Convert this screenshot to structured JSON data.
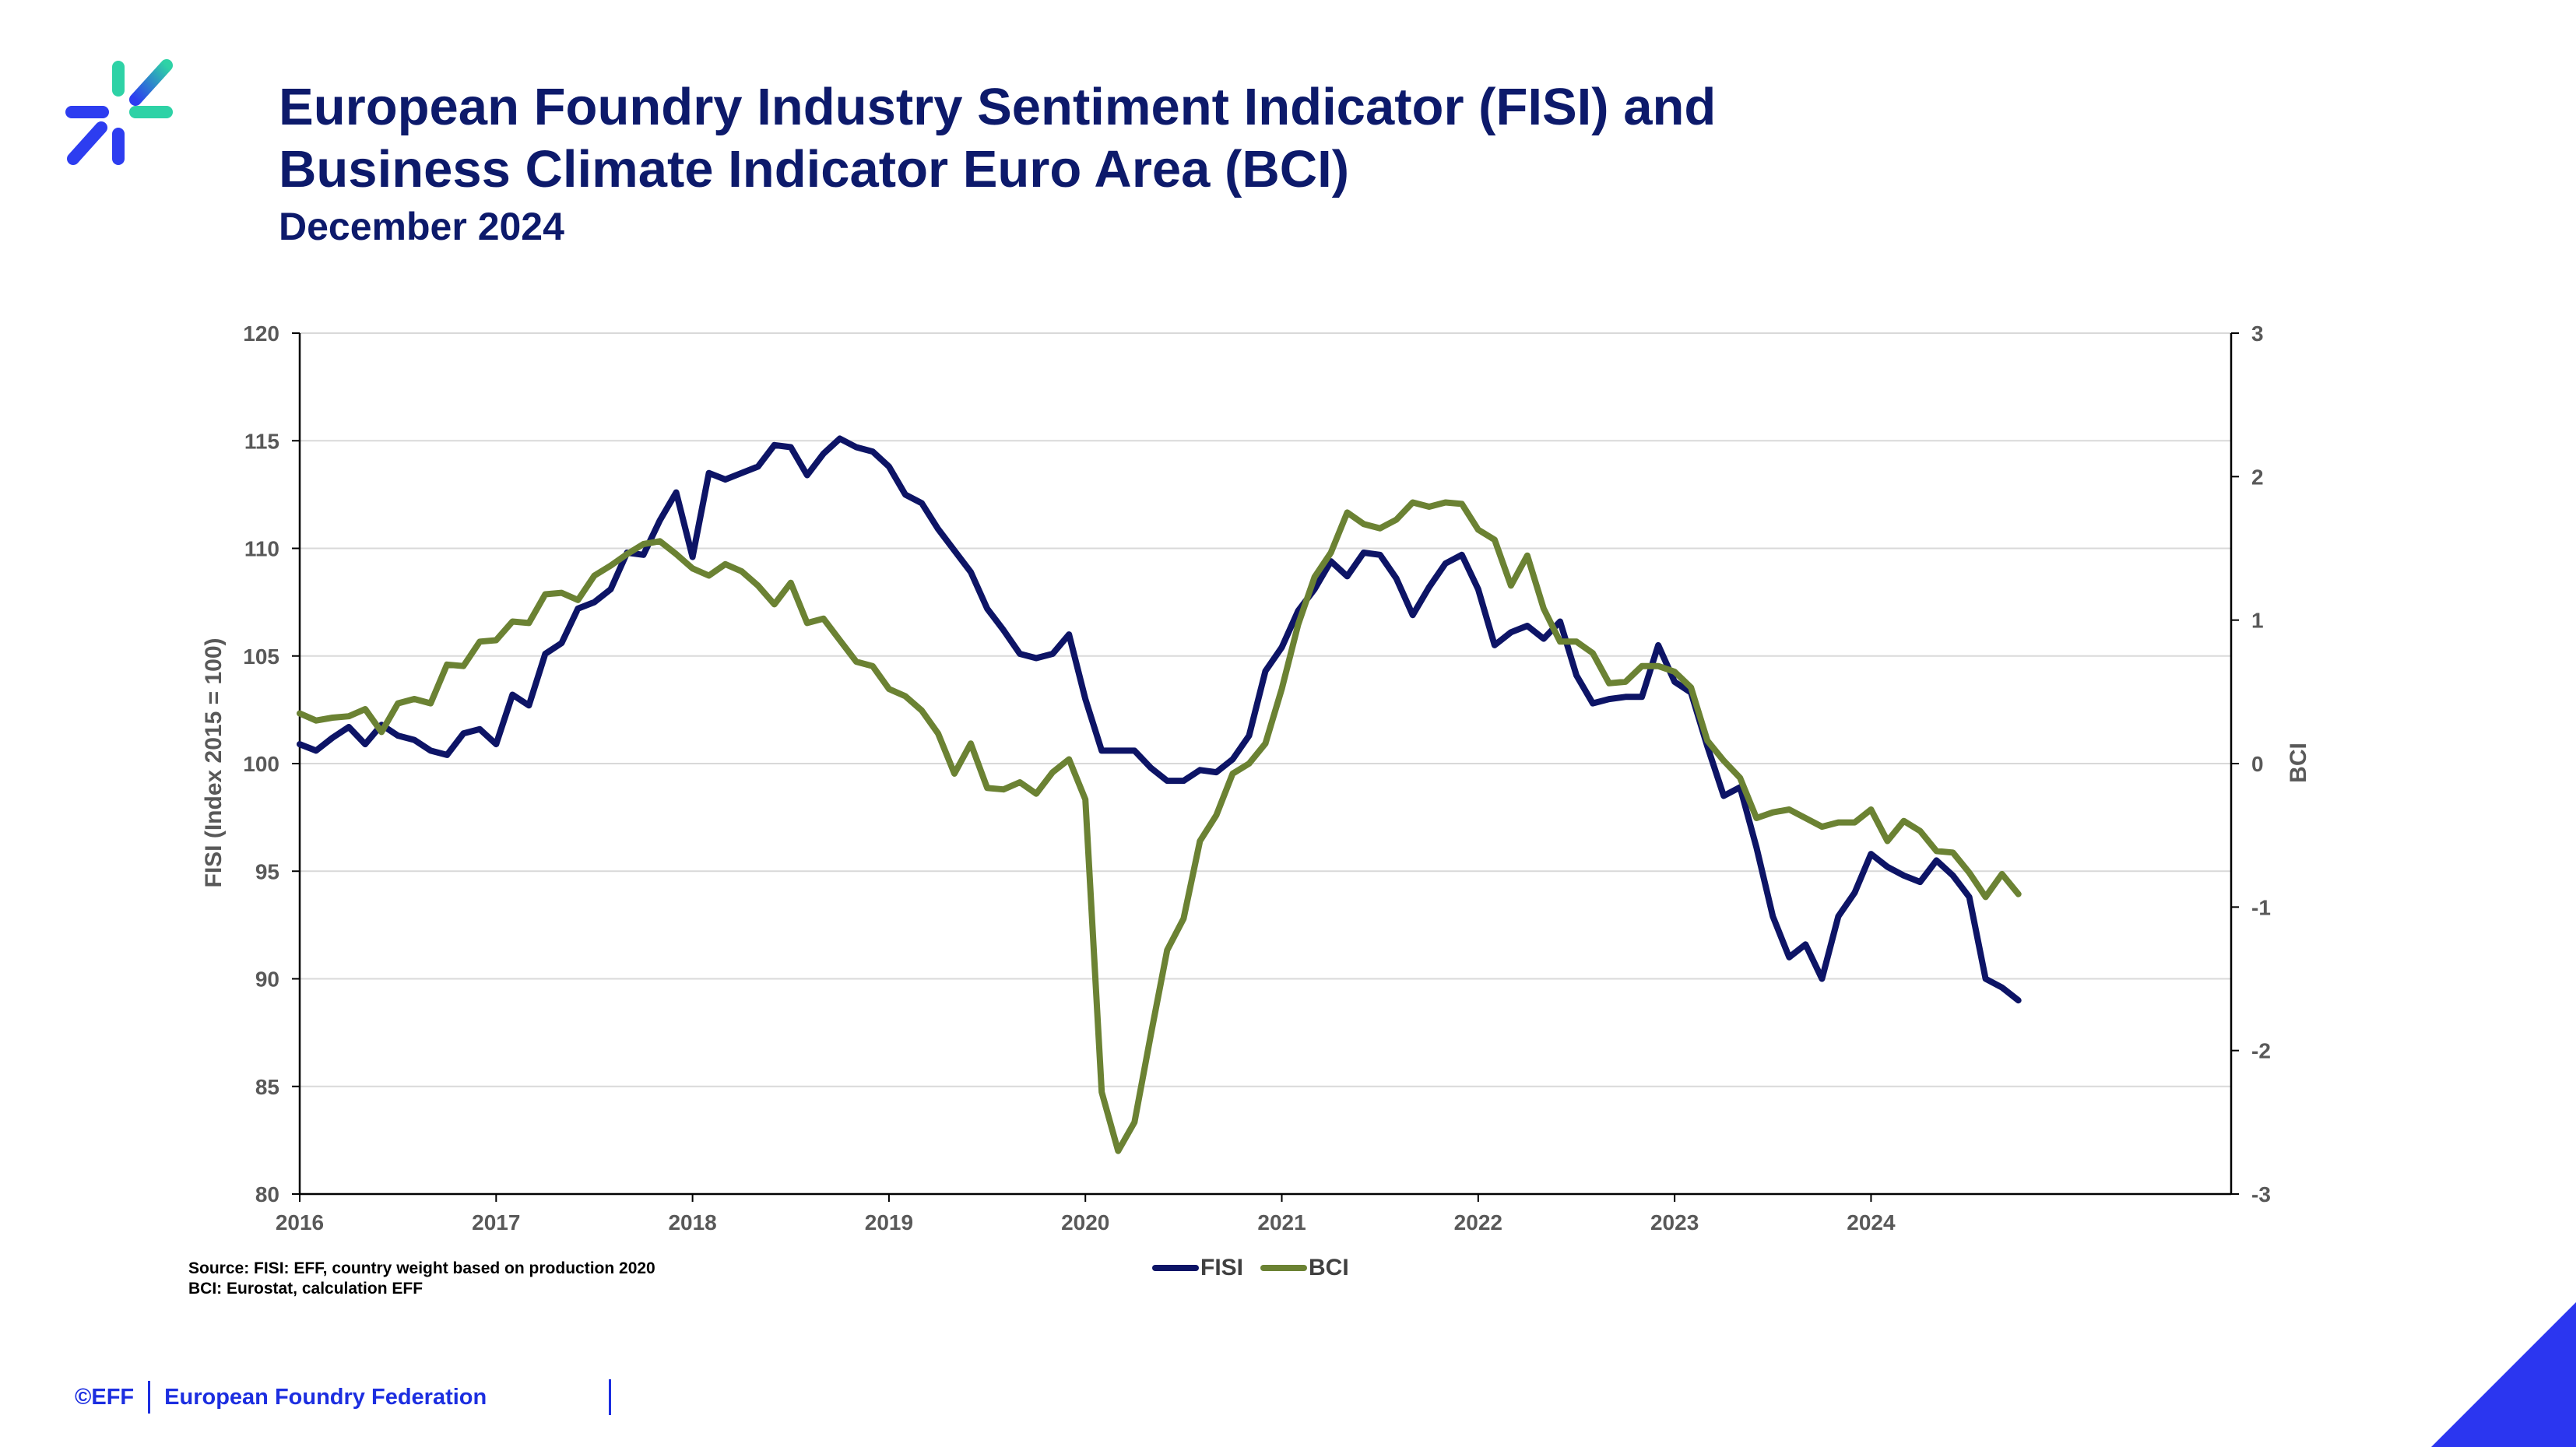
{
  "header": {
    "title_line1": "European Foundry Industry Sentiment Indicator (FISI) and",
    "title_line2": "Business Climate Indicator Euro Area (BCI)",
    "subtitle": "December 2024"
  },
  "source": {
    "line1": "Source: FISI: EFF, country weight based on production 2020",
    "line2": "BCI: Eurostat, calculation EFF"
  },
  "footer": {
    "copyright": "©EFF",
    "org": "European Foundry Federation"
  },
  "colors": {
    "fisi": "#0d1466",
    "bci": "#6b8233",
    "brand_blue": "#1c2ee0",
    "title": "#0d1a6b"
  },
  "chart_data": {
    "type": "line",
    "xlabel": "",
    "x_tick_labels": [
      "2016",
      "2017",
      "2018",
      "2019",
      "2020",
      "2021",
      "2022",
      "2023",
      "2024"
    ],
    "x_start_year": 2016,
    "months": 118,
    "ylabel_left": "FISI (Index 2015 = 100)",
    "ylabel_right": "BCI",
    "ylim_left": [
      80,
      120
    ],
    "ylim_right": [
      -3,
      3
    ],
    "yticks_left": [
      80,
      85,
      90,
      95,
      100,
      105,
      110,
      115,
      120
    ],
    "yticks_right": [
      -3,
      -2,
      -1,
      0,
      1,
      2,
      3
    ],
    "grid": true,
    "legend_position": "bottom",
    "series": [
      {
        "name": "FISI",
        "axis": "left",
        "values": [
          100.9,
          100.6,
          101.2,
          101.7,
          100.9,
          101.8,
          101.3,
          101.1,
          100.6,
          100.4,
          101.4,
          101.6,
          100.9,
          103.2,
          102.7,
          105.1,
          105.6,
          107.2,
          107.5,
          108.1,
          109.8,
          109.7,
          111.3,
          112.6,
          109.6,
          113.5,
          113.2,
          113.5,
          113.8,
          114.8,
          114.7,
          113.4,
          114.4,
          115.1,
          114.7,
          114.5,
          113.8,
          112.5,
          112.1,
          110.9,
          109.9,
          108.9,
          107.2,
          106.2,
          105.1,
          104.9,
          105.1,
          106.0,
          103.0,
          100.6,
          100.6,
          100.6,
          99.8,
          99.2,
          99.2,
          99.7,
          99.6,
          100.2,
          101.3,
          104.3,
          105.4,
          107.1,
          108.1,
          109.4,
          108.7,
          109.8,
          109.7,
          108.6,
          106.9,
          108.2,
          109.3,
          109.7,
          108.1,
          105.5,
          106.1,
          106.4,
          105.8,
          106.6,
          104.1,
          102.8,
          103.0,
          103.1,
          103.1,
          105.5,
          103.8,
          103.3,
          100.8,
          98.5,
          98.9,
          96.1,
          92.9,
          91.0,
          91.6,
          90.0,
          92.9,
          94.0,
          95.8,
          95.2,
          94.8,
          94.5,
          95.5,
          94.8,
          93.8,
          90.0,
          89.6,
          89.0
        ],
        "color": "#0d1466"
      },
      {
        "name": "BCI",
        "axis": "right",
        "values": [
          0.35,
          0.3,
          0.32,
          0.33,
          0.38,
          0.22,
          0.42,
          0.45,
          0.42,
          0.69,
          0.68,
          0.85,
          0.86,
          0.99,
          0.98,
          1.18,
          1.19,
          1.14,
          1.31,
          1.38,
          1.46,
          1.53,
          1.55,
          1.46,
          1.36,
          1.31,
          1.39,
          1.34,
          1.24,
          1.11,
          1.26,
          0.98,
          1.01,
          0.86,
          0.71,
          0.68,
          0.52,
          0.47,
          0.37,
          0.21,
          -0.07,
          0.14,
          -0.17,
          -0.18,
          -0.13,
          -0.21,
          -0.06,
          0.03,
          -0.25,
          -2.29,
          -2.7,
          -2.5,
          -1.89,
          -1.3,
          -1.08,
          -0.54,
          -0.36,
          -0.07,
          0.0,
          0.14,
          0.52,
          0.97,
          1.3,
          1.47,
          1.75,
          1.67,
          1.64,
          1.7,
          1.82,
          1.79,
          1.82,
          1.81,
          1.63,
          1.56,
          1.24,
          1.45,
          1.08,
          0.85,
          0.85,
          0.77,
          0.56,
          0.57,
          0.68,
          0.68,
          0.64,
          0.53,
          0.16,
          0.02,
          -0.1,
          -0.38,
          -0.34,
          -0.32,
          -0.38,
          -0.44,
          -0.41,
          -0.41,
          -0.32,
          -0.54,
          -0.4,
          -0.47,
          -0.61,
          -0.62,
          -0.76,
          -0.93,
          -0.77,
          -0.91
        ],
        "color": "#6b8233"
      }
    ]
  }
}
